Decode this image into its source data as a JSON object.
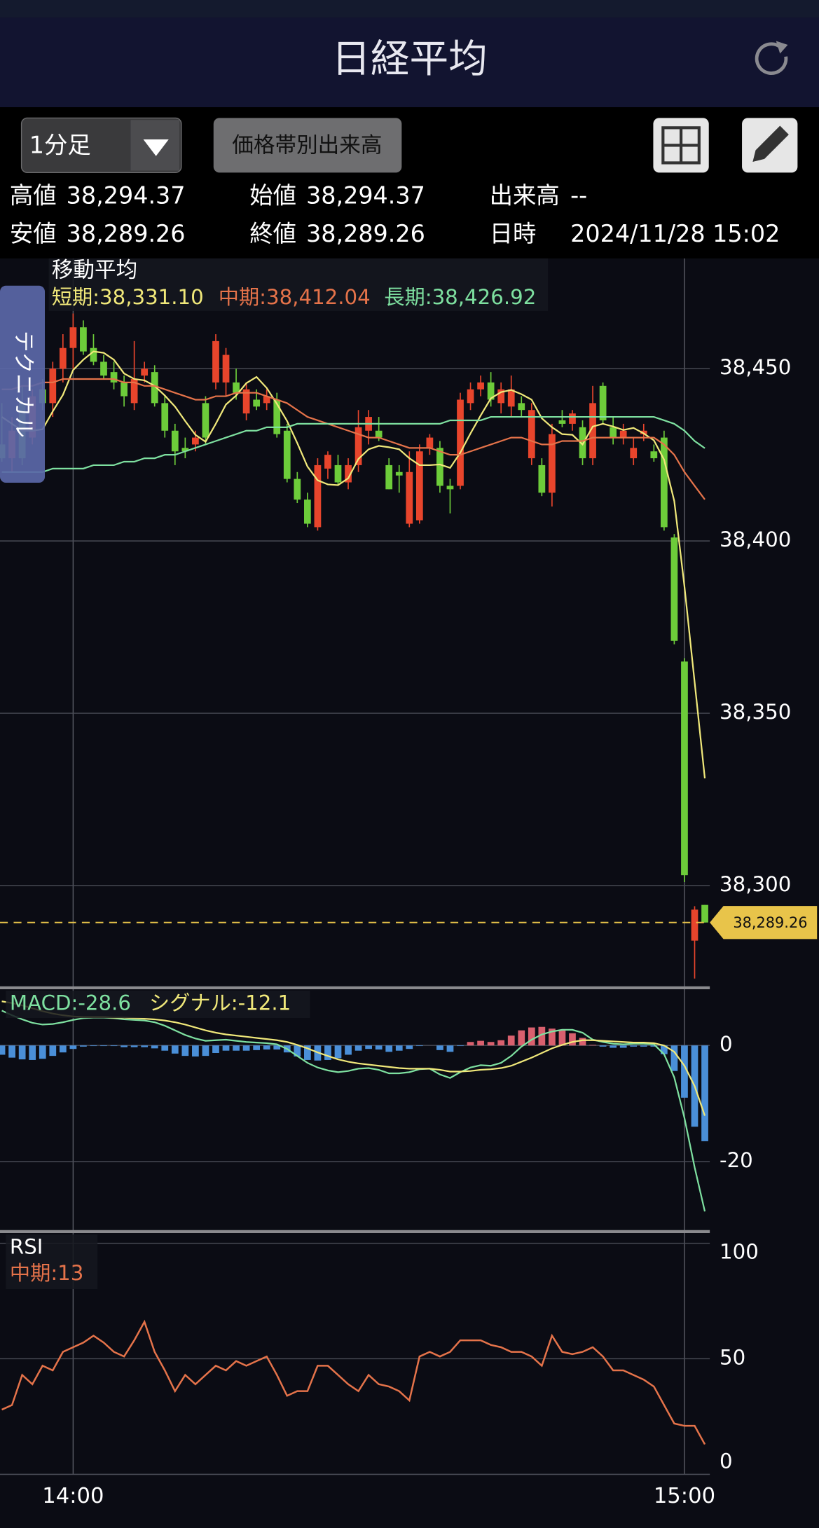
{
  "header": {
    "title": "日経平均"
  },
  "toolbar": {
    "interval": "1分足",
    "volume_button": "価格帯別出来高"
  },
  "info": [
    [
      {
        "label": "高値",
        "value": "38,294.37"
      },
      {
        "label": "始値",
        "value": "38,294.37"
      },
      {
        "label": "出来高",
        "value": "--"
      }
    ],
    [
      {
        "label": "安値",
        "value": "38,289.26"
      },
      {
        "label": "終値",
        "value": "38,289.26"
      },
      {
        "label": "日時",
        "value": "2024/11/28 15:02"
      }
    ]
  ],
  "side_tab": "テクニカル",
  "chart_data": [
    {
      "type": "candlestick",
      "title": "移動平均",
      "categories": [
        null,
        null,
        null,
        null,
        null,
        null,
        null,
        "14:00",
        null,
        null,
        null,
        null,
        null,
        null,
        null,
        null,
        null,
        null,
        null,
        null,
        null,
        null,
        null,
        null,
        null,
        null,
        null,
        null,
        null,
        null,
        null,
        null,
        null,
        null,
        null,
        null,
        null,
        null,
        null,
        null,
        null,
        null,
        null,
        null,
        null,
        null,
        null,
        null,
        null,
        null,
        null,
        null,
        null,
        null,
        null,
        null,
        null,
        null,
        null,
        null,
        null,
        null,
        null,
        null,
        null,
        null,
        null,
        "15:00",
        null,
        null
      ],
      "open": [
        38428,
        38424,
        38440,
        38430,
        38444,
        38440,
        38450,
        38456,
        38462,
        38456,
        38452,
        38449,
        38446,
        38440,
        38448,
        38449,
        38440,
        38432,
        38427,
        38428,
        38440,
        38446,
        38446,
        38446,
        38437,
        38441,
        38440,
        38441,
        38432,
        38418,
        38412,
        38404,
        38421,
        38422,
        38417,
        38422,
        38432,
        38432,
        38422,
        38420,
        38405,
        38406,
        38427,
        38427,
        38416,
        38416,
        38440,
        38444,
        38446,
        38440,
        38439,
        38440,
        38424,
        38422,
        38414,
        38435,
        38434,
        38433,
        38424,
        38445,
        38433,
        38430,
        38424,
        38431,
        38426,
        38430,
        38401,
        38365,
        38284,
        38294.37
      ],
      "high": [
        38440,
        38436,
        38445,
        38444,
        38447,
        38452,
        38460,
        38466,
        38464,
        38460,
        38454,
        38452,
        38448,
        38458,
        38452,
        38451,
        38442,
        38434,
        38430,
        38432,
        38442,
        38460,
        38456,
        38450,
        38446,
        38444,
        38444,
        38443,
        38434,
        38420,
        38414,
        38424,
        38426,
        38425,
        38424,
        38438,
        38438,
        38436,
        38424,
        38422,
        38426,
        38428,
        38431,
        38429,
        38418,
        38443,
        38446,
        38448,
        38449,
        38446,
        38448,
        38442,
        38440,
        38424,
        38434,
        38438,
        38438,
        38435,
        38445,
        38446,
        38436,
        38434,
        38430,
        38434,
        38428,
        38432,
        38402,
        38366,
        38294,
        38294.37
      ],
      "low": [
        38423,
        38420,
        38422,
        38428,
        38438,
        38436,
        38446,
        38450,
        38454,
        38451,
        38447,
        38444,
        38439,
        38438,
        38446,
        38439,
        38430,
        38422,
        38424,
        38426,
        38428,
        38444,
        38442,
        38441,
        38435,
        38438,
        38438,
        38430,
        38417,
        38411,
        38404,
        38403,
        38418,
        38416,
        38415,
        38420,
        38428,
        38429,
        38415,
        38414,
        38404,
        38405,
        38425,
        38414,
        38408,
        38415,
        38438,
        38442,
        38439,
        38437,
        38436,
        38436,
        38422,
        38413,
        38410,
        38433,
        38432,
        38422,
        38422,
        38434,
        38428,
        38428,
        38422,
        38429,
        38423,
        38403,
        38370,
        38301,
        38273,
        38289.26
      ],
      "close": [
        38424,
        38432,
        38424,
        38442,
        38440,
        38450,
        38456,
        38462,
        38455,
        38452,
        38448,
        38446,
        38442,
        38447,
        38450,
        38440,
        38432,
        38426,
        38426,
        38430,
        38430,
        38458,
        38454,
        38443,
        38444,
        38439,
        38442,
        38431,
        38418,
        38412,
        38405,
        38422,
        38425,
        38417,
        38422,
        38433,
        38436,
        38430,
        38415,
        38419,
        38420,
        38426,
        38430,
        38416,
        38415,
        38441,
        38444,
        38446,
        38441,
        38444,
        38444,
        38438,
        38438,
        38414,
        38431,
        38434,
        38437,
        38424,
        38440,
        38435,
        38430,
        38432,
        38427,
        38432,
        38424,
        38404,
        38371,
        38303,
        38293,
        38289.26
      ],
      "up_color": "#e8452c",
      "down_color": "#6dcc3a",
      "series": [
        {
          "name": "短期:38,331.10",
          "color": "#f0e87a",
          "values": [
            38436,
            38434,
            38432,
            38432,
            38432.4,
            38437.6,
            38442.4,
            38449.6,
            38452.6,
            38455,
            38454.6,
            38452.6,
            38448.6,
            38447,
            38446.6,
            38445,
            38442.2,
            38439,
            38434.8,
            38430.8,
            38428.8,
            38434,
            38439.6,
            38442.2,
            38445.8,
            38447.6,
            38444.4,
            38439.8,
            38434.8,
            38428.4,
            38421.6,
            38417.6,
            38416.4,
            38416.2,
            38418.2,
            38423.8,
            38426.6,
            38427.6,
            38427.2,
            38426.6,
            38424,
            38422,
            38422,
            38422.2,
            38421.2,
            38425.6,
            38431.2,
            38436.4,
            38441.4,
            38443.2,
            38443.8,
            38442.6,
            38441,
            38435.6,
            38433,
            38431,
            38430.8,
            38428,
            38433.2,
            38434,
            38433.2,
            38432.2,
            38432.8,
            38431.2,
            38429.2,
            38423.6,
            38411.6,
            38386.8,
            38359,
            38331.1
          ]
        },
        {
          "name": "中期:38,412.04",
          "color": "#e5734a",
          "values": [
            38444,
            38444,
            38445,
            38445,
            38446,
            38446,
            38447,
            38447,
            38447,
            38447,
            38447,
            38447,
            38446,
            38446,
            38445,
            38445,
            38444,
            38443,
            38442,
            38441,
            38441,
            38442,
            38442,
            38443,
            38443,
            38443,
            38442,
            38441,
            38440,
            38438,
            38436,
            38435,
            38434,
            38433,
            38432,
            38431,
            38430,
            38430,
            38429,
            38428,
            38427,
            38427,
            38427,
            38426,
            38425,
            38425,
            38426,
            38427,
            38428,
            38429,
            38430,
            38430,
            38429,
            38428,
            38428,
            38429,
            38429,
            38429,
            38430,
            38430,
            38430,
            38430,
            38430,
            38430,
            38430,
            38428,
            38425,
            38420,
            38416,
            38412.04
          ]
        },
        {
          "name": "長期:38,426.92",
          "color": "#7ee0a0",
          "values": [
            38420,
            38420,
            38420,
            38420,
            38420,
            38421,
            38421,
            38421,
            38421,
            38422,
            38422,
            38422,
            38423,
            38423,
            38424,
            38424,
            38425,
            38425,
            38426,
            38427,
            38428,
            38429,
            38430,
            38431,
            38432,
            38432,
            38433,
            38433,
            38433,
            38434,
            38434,
            38434,
            38434,
            38434,
            38434,
            38434,
            38434,
            38434,
            38434,
            38434,
            38434,
            38434,
            38434,
            38434,
            38435,
            38435,
            38435,
            38435,
            38436,
            38436,
            38436,
            38436,
            38436,
            38436,
            38436,
            38436,
            38436,
            38436,
            38436,
            38436,
            38436,
            38436,
            38436,
            38436,
            38436,
            38435,
            38434,
            38432,
            38429,
            38426.92
          ]
        }
      ],
      "ylim": [
        38270.6,
        38482
      ],
      "yticks": [
        {
          "value": 38300,
          "label": "38,300"
        },
        {
          "value": 38350,
          "label": "38,350"
        },
        {
          "value": 38400,
          "label": "38,400"
        },
        {
          "value": 38450,
          "label": "38,450"
        }
      ],
      "last_price": 38289.26,
      "last_price_label": "38,289.26",
      "grid": true
    },
    {
      "type": "macd",
      "up_color": "#d9606e",
      "down_color": "#4a8fd8",
      "histogram": [
        -1.6,
        -2.1,
        -2.4,
        -2.5,
        -2.3,
        -1.8,
        -1.2,
        -0.6,
        -0.2,
        -0.1,
        -0.1,
        -0.1,
        -0.3,
        -0.3,
        -0.3,
        -0.5,
        -0.9,
        -1.4,
        -1.8,
        -1.9,
        -1.8,
        -1.3,
        -0.9,
        -0.9,
        -0.9,
        -0.8,
        -0.7,
        -0.7,
        -1.2,
        -1.9,
        -2.5,
        -2.6,
        -2.5,
        -2.2,
        -1.6,
        -0.9,
        -0.6,
        -0.7,
        -1.1,
        -0.9,
        -0.6,
        -0.1,
        0.0,
        -0.8,
        -1.1,
        -0.1,
        0.6,
        0.8,
        0.6,
        0.9,
        1.7,
        2.6,
        3.1,
        3.2,
        2.9,
        2.6,
        2.1,
        1.3,
        0.1,
        -0.2,
        -0.4,
        -0.4,
        -0.2,
        -0.2,
        -0.2,
        -1.5,
        -4.4,
        -9.0,
        -14.0,
        -16.5
      ],
      "series": [
        {
          "name": "MACD:-28.6",
          "color": "#7ee0a0",
          "values": [
            6.0,
            5.2,
            4.5,
            3.9,
            3.6,
            3.7,
            4.0,
            4.4,
            4.7,
            4.8,
            4.8,
            4.7,
            4.5,
            4.4,
            4.3,
            4.0,
            3.4,
            2.6,
            1.8,
            1.2,
            0.8,
            0.9,
            1.0,
            0.8,
            0.6,
            0.5,
            0.4,
            0.2,
            -0.6,
            -1.8,
            -3.0,
            -3.8,
            -4.3,
            -4.6,
            -4.4,
            -4.0,
            -3.9,
            -4.2,
            -4.8,
            -4.8,
            -4.6,
            -4.1,
            -4.0,
            -5.0,
            -5.6,
            -4.6,
            -3.8,
            -3.4,
            -3.5,
            -3.0,
            -1.8,
            -0.2,
            1.0,
            1.9,
            2.4,
            2.7,
            2.7,
            2.2,
            1.0,
            0.6,
            0.3,
            0.2,
            0.3,
            0.3,
            0.2,
            -1.5,
            -5.5,
            -12.5,
            -21.0,
            -28.6
          ]
        },
        {
          "name": "シグナル:-12.1",
          "color": "#f0e87a",
          "values": [
            7.6,
            7.3,
            6.9,
            6.4,
            5.9,
            5.5,
            5.2,
            5.0,
            4.9,
            4.9,
            4.9,
            4.8,
            4.8,
            4.7,
            4.6,
            4.5,
            4.3,
            4.0,
            3.6,
            3.1,
            2.6,
            2.2,
            1.9,
            1.7,
            1.5,
            1.3,
            1.1,
            0.9,
            0.6,
            0.1,
            -0.5,
            -1.2,
            -1.8,
            -2.4,
            -2.8,
            -3.1,
            -3.3,
            -3.5,
            -3.7,
            -3.9,
            -4.0,
            -4.0,
            -4.0,
            -4.2,
            -4.5,
            -4.5,
            -4.4,
            -4.2,
            -4.1,
            -3.9,
            -3.5,
            -2.8,
            -2.1,
            -1.3,
            -0.5,
            0.1,
            0.6,
            0.9,
            0.9,
            0.8,
            0.7,
            0.6,
            0.5,
            0.5,
            0.4,
            0.0,
            -1.1,
            -3.5,
            -7.0,
            -12.1
          ]
        }
      ],
      "ylim": [
        -31.9,
        9.6
      ],
      "yticks": [
        0,
        -20
      ],
      "grid": true
    },
    {
      "type": "line",
      "title": "RSI",
      "series": [
        {
          "name": "中期:13",
          "color": "#e5734a",
          "values": [
            28,
            30,
            43,
            39,
            47,
            45,
            53,
            55,
            57,
            60,
            57,
            53,
            51,
            58,
            66,
            53,
            45,
            36,
            43,
            39,
            43,
            47,
            45,
            49,
            47,
            49,
            51,
            43,
            34,
            36,
            36,
            47,
            47,
            43,
            39,
            36,
            43,
            39,
            38,
            36,
            32,
            51,
            53,
            51,
            53,
            58,
            58,
            58,
            56,
            55,
            53,
            53,
            51,
            47,
            60,
            53,
            52,
            53,
            55,
            51,
            45,
            45,
            43,
            41,
            38,
            30,
            22,
            21,
            21,
            13
          ]
        }
      ],
      "ylim": [
        0,
        104.2
      ],
      "yticks": [
        0,
        50,
        100
      ],
      "grid": true
    }
  ]
}
